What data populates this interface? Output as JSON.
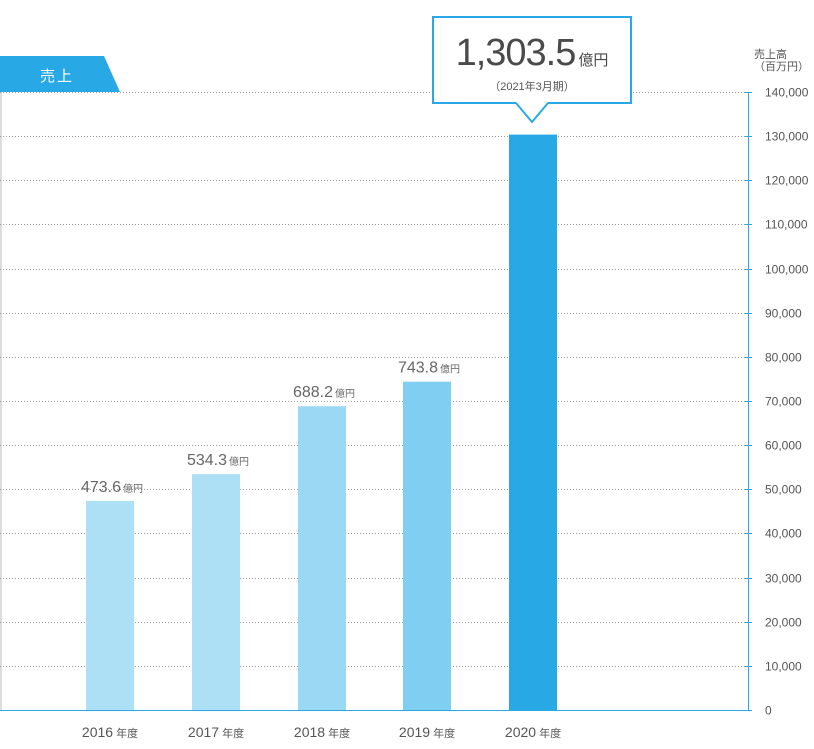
{
  "section_tab": {
    "label": "売上",
    "color": "#29a8e6"
  },
  "axis_unit": {
    "line1": "売上高",
    "line2": "（百万円）"
  },
  "highlight": {
    "value": "1,303.5",
    "unit": "億円",
    "period": "（2021年3月期）"
  },
  "colors": {
    "accent": "#29a8e6",
    "bar_light": "#ade0f5",
    "bar_mid": "#7ccdf1",
    "bar_highlight": "#29a8e6"
  },
  "chart_data": {
    "type": "bar",
    "categories": [
      "2016",
      "2017",
      "2018",
      "2019",
      "2020"
    ],
    "category_suffix": "年度",
    "values": [
      47360,
      53430,
      68820,
      74380,
      130350
    ],
    "data_labels": [
      "473.6",
      "534.3",
      "688.2",
      "743.8",
      ""
    ],
    "data_label_unit": "億円",
    "ylim": [
      0,
      140000
    ],
    "yticks": [
      "0",
      "10,000",
      "20,000",
      "30,000",
      "40,000",
      "50,000",
      "60,000",
      "70,000",
      "80,000",
      "90,000",
      "100,000",
      "110,000",
      "120,000",
      "130,000",
      "140,000"
    ],
    "grid": true,
    "y_axis_position": "right"
  }
}
